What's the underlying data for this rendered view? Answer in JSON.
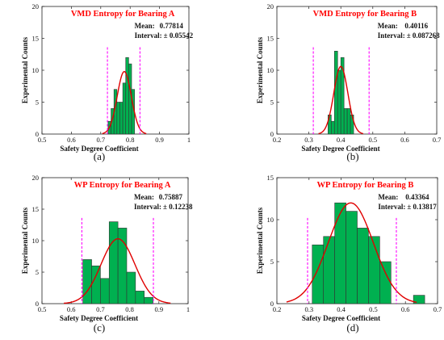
{
  "chart_data": [
    {
      "type": "bar",
      "panel_label": "(a)",
      "title": "VMD Entropy for Bearing A",
      "xlabel": "Safety Degree Coefficient",
      "ylabel": "Experimental Counts",
      "xlim": [
        0.5,
        1.0
      ],
      "ylim": [
        0,
        20
      ],
      "xticks": [
        "0.5",
        "0.6",
        "0.7",
        "0.8",
        "0.9",
        "1"
      ],
      "yticks": [
        "0",
        "5",
        "10",
        "15",
        "20"
      ],
      "mean_label": "Mean:",
      "mean_value": "0.77814",
      "interval_label": "Interval:",
      "interval_value": "± 0.05542",
      "mean": 0.77814,
      "halfwidth": 0.05542,
      "bins": [
        {
          "x0": 0.725,
          "x1": 0.735,
          "count": 2
        },
        {
          "x0": 0.735,
          "x1": 0.745,
          "count": 4
        },
        {
          "x0": 0.745,
          "x1": 0.755,
          "count": 7
        },
        {
          "x0": 0.755,
          "x1": 0.765,
          "count": 5
        },
        {
          "x0": 0.765,
          "x1": 0.775,
          "count": 5
        },
        {
          "x0": 0.775,
          "x1": 0.785,
          "count": 8
        },
        {
          "x0": 0.785,
          "x1": 0.795,
          "count": 12
        },
        {
          "x0": 0.795,
          "x1": 0.805,
          "count": 11
        },
        {
          "x0": 0.805,
          "x1": 0.815,
          "count": 7
        }
      ],
      "curve": {
        "mean": 0.78,
        "sigma": 0.024,
        "peak": 9.8,
        "xmin": 0.705,
        "xmax": 0.855
      },
      "limits": [
        0.72272,
        0.83356
      ]
    },
    {
      "type": "bar",
      "panel_label": "(b)",
      "title": "VMD Entropy for Bearing B",
      "xlabel": "Safety Degree Coefficient",
      "ylabel": "Experimental Counts",
      "xlim": [
        0.2,
        0.7
      ],
      "ylim": [
        0,
        20
      ],
      "xticks": [
        "0.2",
        "0.3",
        "0.4",
        "0.5",
        "0.6",
        "0.7"
      ],
      "yticks": [
        "0",
        "5",
        "10",
        "15",
        "20"
      ],
      "mean_label": "Mean:",
      "mean_value": "0.40116",
      "interval_label": "Interval:",
      "interval_value": "± 0.087268",
      "mean": 0.40116,
      "halfwidth": 0.087268,
      "bins": [
        {
          "x0": 0.36,
          "x1": 0.37,
          "count": 3
        },
        {
          "x0": 0.37,
          "x1": 0.38,
          "count": 2
        },
        {
          "x0": 0.38,
          "x1": 0.39,
          "count": 13
        },
        {
          "x0": 0.39,
          "x1": 0.4,
          "count": 10
        },
        {
          "x0": 0.4,
          "x1": 0.41,
          "count": 12
        },
        {
          "x0": 0.41,
          "x1": 0.42,
          "count": 4
        },
        {
          "x0": 0.42,
          "x1": 0.43,
          "count": 4
        },
        {
          "x0": 0.43,
          "x1": 0.44,
          "count": 3
        }
      ],
      "curve": {
        "mean": 0.4,
        "sigma": 0.022,
        "peak": 10.6,
        "xmin": 0.33,
        "xmax": 0.47
      },
      "limits": [
        0.3139,
        0.4884
      ]
    },
    {
      "type": "bar",
      "panel_label": "(c)",
      "title": "WP Entropy for Bearing A",
      "xlabel": "Safety Degree Coefficient",
      "ylabel": "Experimental Counts",
      "xlim": [
        0.5,
        1.0
      ],
      "ylim": [
        0,
        20
      ],
      "xticks": [
        "0.5",
        "0.6",
        "0.7",
        "0.8",
        "0.9",
        "1"
      ],
      "yticks": [
        "0",
        "5",
        "10",
        "15",
        "20"
      ],
      "mean_label": "Mean:",
      "mean_value": "0.75887",
      "interval_label": "Interval:",
      "interval_value": "± 0.12238",
      "mean": 0.75887,
      "halfwidth": 0.12238,
      "bins": [
        {
          "x0": 0.64,
          "x1": 0.67,
          "count": 7
        },
        {
          "x0": 0.67,
          "x1": 0.7,
          "count": 6
        },
        {
          "x0": 0.7,
          "x1": 0.73,
          "count": 4
        },
        {
          "x0": 0.73,
          "x1": 0.76,
          "count": 13
        },
        {
          "x0": 0.76,
          "x1": 0.79,
          "count": 12
        },
        {
          "x0": 0.79,
          "x1": 0.82,
          "count": 5
        },
        {
          "x0": 0.82,
          "x1": 0.85,
          "count": 2
        },
        {
          "x0": 0.85,
          "x1": 0.88,
          "count": 1
        }
      ],
      "curve": {
        "mean": 0.76,
        "sigma": 0.058,
        "peak": 10.3,
        "xmin": 0.575,
        "xmax": 0.94
      },
      "limits": [
        0.63649,
        0.88125
      ]
    },
    {
      "type": "bar",
      "panel_label": "(d)",
      "title": "WP Entropy for Bearing B",
      "xlabel": "Safety Degree Coefficient",
      "ylabel": "Experimental Counts",
      "xlim": [
        0.2,
        0.7
      ],
      "ylim": [
        0,
        15
      ],
      "xticks": [
        "0.2",
        "0.3",
        "0.4",
        "0.5",
        "0.6",
        "0.7"
      ],
      "yticks": [
        "0",
        "5",
        "10",
        "15"
      ],
      "mean_label": "Mean:",
      "mean_value": "0.43364",
      "interval_label": "Interval:",
      "interval_value": "± 0.13817",
      "mean": 0.43364,
      "halfwidth": 0.13817,
      "bins": [
        {
          "x0": 0.31,
          "x1": 0.345,
          "count": 7
        },
        {
          "x0": 0.345,
          "x1": 0.38,
          "count": 8
        },
        {
          "x0": 0.38,
          "x1": 0.415,
          "count": 12
        },
        {
          "x0": 0.415,
          "x1": 0.45,
          "count": 11
        },
        {
          "x0": 0.45,
          "x1": 0.485,
          "count": 9
        },
        {
          "x0": 0.485,
          "x1": 0.52,
          "count": 8
        },
        {
          "x0": 0.52,
          "x1": 0.555,
          "count": 5
        },
        {
          "x0": 0.555,
          "x1": 0.59,
          "count": 0
        },
        {
          "x0": 0.59,
          "x1": 0.625,
          "count": 0
        },
        {
          "x0": 0.625,
          "x1": 0.66,
          "count": 1
        }
      ],
      "curve": {
        "mean": 0.43,
        "sigma": 0.07,
        "peak": 12.0,
        "xmin": 0.23,
        "xmax": 0.635
      },
      "limits": [
        0.29547,
        0.57181
      ]
    }
  ],
  "colors": {
    "bar_fill": "#00b050",
    "bar_stroke": "#333333",
    "curve": "#e00000",
    "limit_line": "#ff00ff",
    "title": "#ff0000"
  }
}
